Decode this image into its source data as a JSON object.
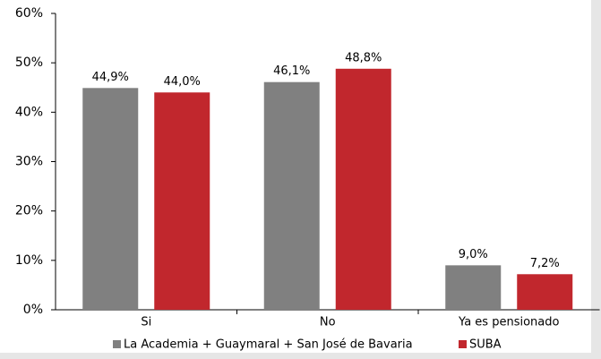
{
  "chart_data": {
    "type": "bar",
    "categories": [
      "Si",
      "No",
      "Ya es pensionado"
    ],
    "series": [
      {
        "name": "La Academia + Guaymaral + San José de Bavaria",
        "color": "#808080",
        "values": [
          44.9,
          46.1,
          9.0
        ],
        "value_labels": [
          "44,9%",
          "46,1%",
          "9,0%"
        ]
      },
      {
        "name": "SUBA",
        "color": "#c1272d",
        "values": [
          44.0,
          48.8,
          7.2
        ],
        "value_labels": [
          "44,0%",
          "48,8%",
          "7,2%"
        ]
      }
    ],
    "ylim": [
      0,
      60
    ],
    "yticks": [
      {
        "value": 0,
        "label": "0%"
      },
      {
        "value": 10,
        "label": "10%"
      },
      {
        "value": 20,
        "label": "20%"
      },
      {
        "value": 30,
        "label": "30%"
      },
      {
        "value": 40,
        "label": "40%"
      },
      {
        "value": 50,
        "label": "50%"
      },
      {
        "value": 60,
        "label": "60%"
      }
    ],
    "legend": "bottom"
  }
}
